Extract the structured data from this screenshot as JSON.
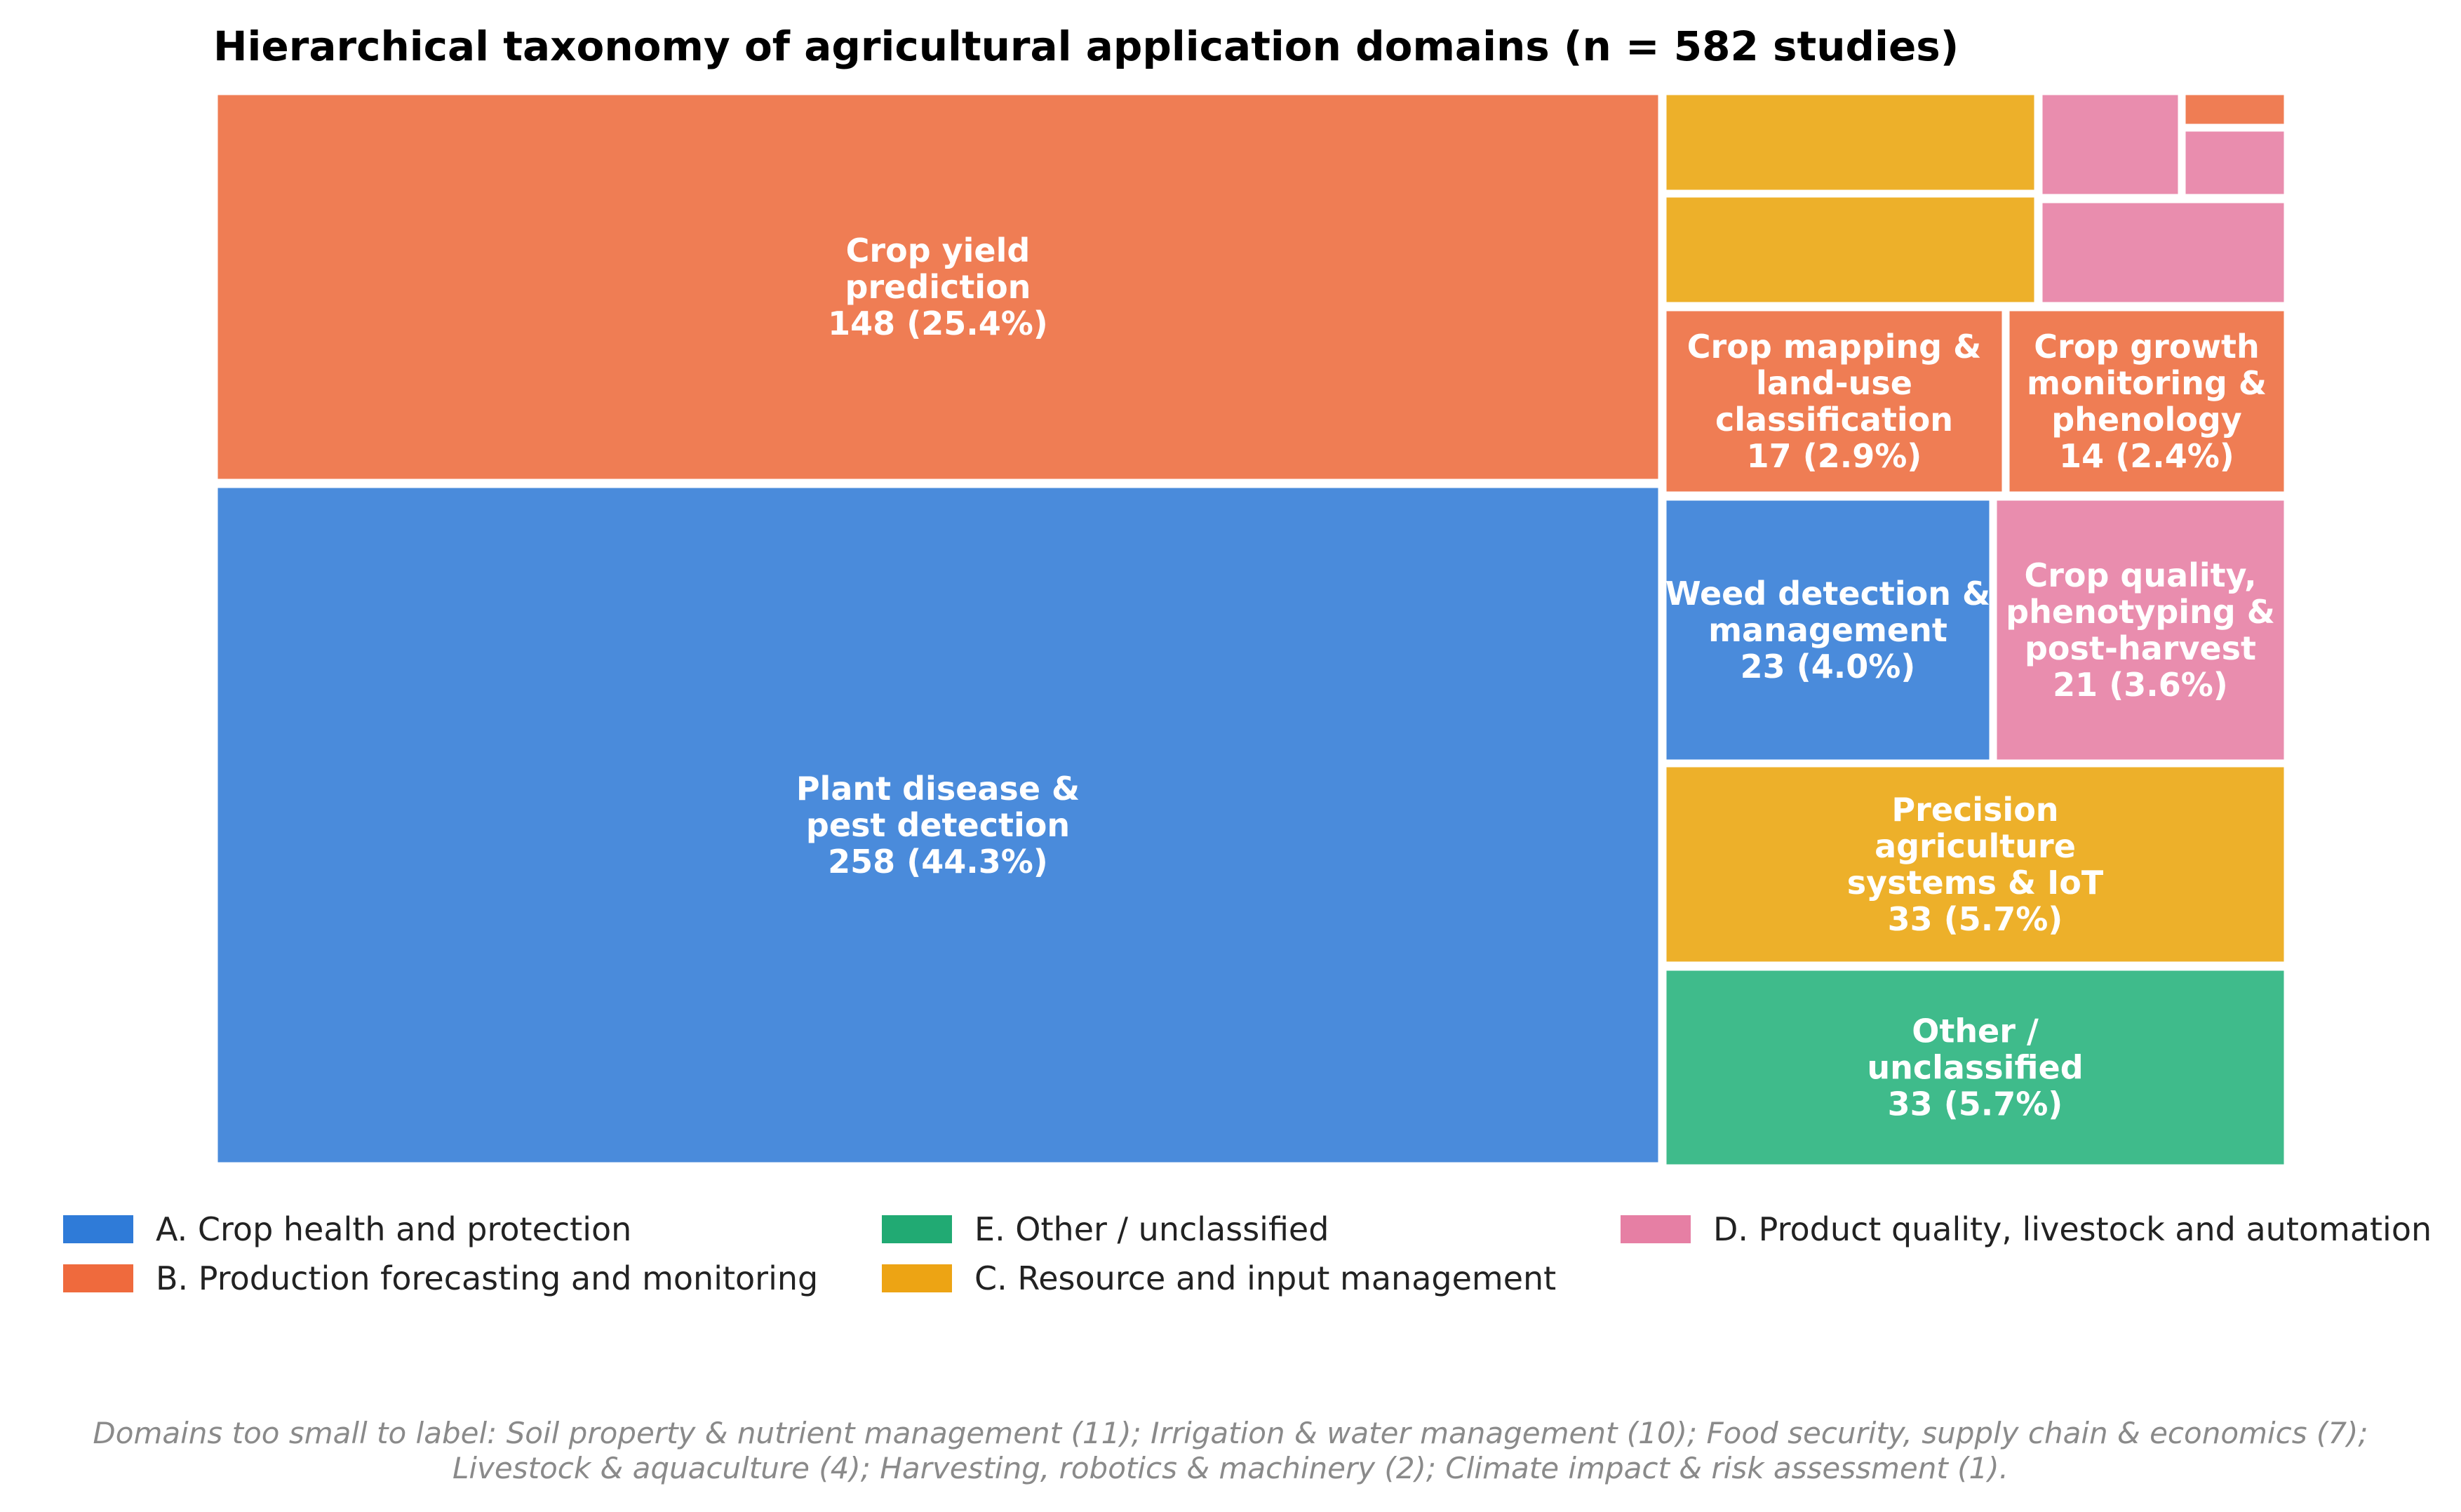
{
  "colors": {
    "A": "#4A8BDB",
    "B": "#EF7D54",
    "C": "#EDB02A",
    "D": "#E98DAE",
    "E": "#3FBB8B",
    "legend_A": "#2F7BD8",
    "legend_B": "#EF6A3D",
    "legend_C": "#EDA414",
    "legend_D": "#E67FA4",
    "legend_E": "#21AA73"
  },
  "chart_data": {
    "type": "treemap",
    "title": "Hierarchical taxonomy of agricultural application domains (n = 582 studies)",
    "total": 582,
    "nodes": [
      {
        "id": "plant-disease",
        "group": "A",
        "value": 258,
        "percent": 44.3,
        "label_lines": [
          "Plant disease &",
          "pest detection",
          "258 (44.3%)"
        ]
      },
      {
        "id": "crop-yield",
        "group": "B",
        "value": 148,
        "percent": 25.4,
        "label_lines": [
          "Crop yield",
          "prediction",
          "148 (25.4%)"
        ]
      },
      {
        "id": "precision-ag",
        "group": "C",
        "value": 33,
        "percent": 5.7,
        "label_lines": [
          "Precision",
          "agriculture",
          "systems & IoT",
          "33 (5.7%)"
        ]
      },
      {
        "id": "other",
        "group": "E",
        "value": 33,
        "percent": 5.7,
        "label_lines": [
          "Other /",
          "unclassified",
          "33 (5.7%)"
        ]
      },
      {
        "id": "weed",
        "group": "A",
        "value": 23,
        "percent": 4.0,
        "label_lines": [
          "Weed detection &",
          "management",
          "23 (4.0%)"
        ]
      },
      {
        "id": "crop-quality",
        "group": "D",
        "value": 21,
        "percent": 3.6,
        "label_lines": [
          "Crop quality,",
          "phenotyping &",
          "post-harvest",
          "21 (3.6%)"
        ]
      },
      {
        "id": "crop-mapping",
        "group": "B",
        "value": 17,
        "percent": 2.9,
        "label_lines": [
          "Crop mapping &",
          "land-use",
          "classification",
          "17 (2.9%)"
        ]
      },
      {
        "id": "crop-growth",
        "group": "B",
        "value": 14,
        "percent": 2.4,
        "label_lines": [
          "Crop growth",
          "monitoring &",
          "phenology",
          "14 (2.4%)"
        ]
      },
      {
        "id": "soil",
        "group": "C",
        "value": 11,
        "label_lines": []
      },
      {
        "id": "irrigation",
        "group": "C",
        "value": 10,
        "label_lines": []
      },
      {
        "id": "food-security",
        "group": "D",
        "value": 7,
        "label_lines": []
      },
      {
        "id": "livestock",
        "group": "D",
        "value": 4,
        "label_lines": []
      },
      {
        "id": "harvesting",
        "group": "D",
        "value": 2,
        "label_lines": []
      },
      {
        "id": "climate",
        "group": "B",
        "value": 1,
        "label_lines": []
      }
    ],
    "legend": [
      {
        "group": "A",
        "label": "A. Crop health and protection"
      },
      {
        "group": "B",
        "label": "B. Production forecasting and monitoring"
      },
      {
        "group": "E",
        "label": "E. Other / unclassified"
      },
      {
        "group": "C",
        "label": "C. Resource and input management"
      },
      {
        "group": "D",
        "label": "D. Product quality, livestock and automation"
      }
    ],
    "footnote_lines": [
      "Domains too small to label: Soil property & nutrient management (11); Irrigation & water management (10); Food security, supply chain & economics (7);",
      "Livestock & aquaculture (4); Harvesting, robotics & machinery (2); Climate impact & risk assessment (1)."
    ]
  }
}
